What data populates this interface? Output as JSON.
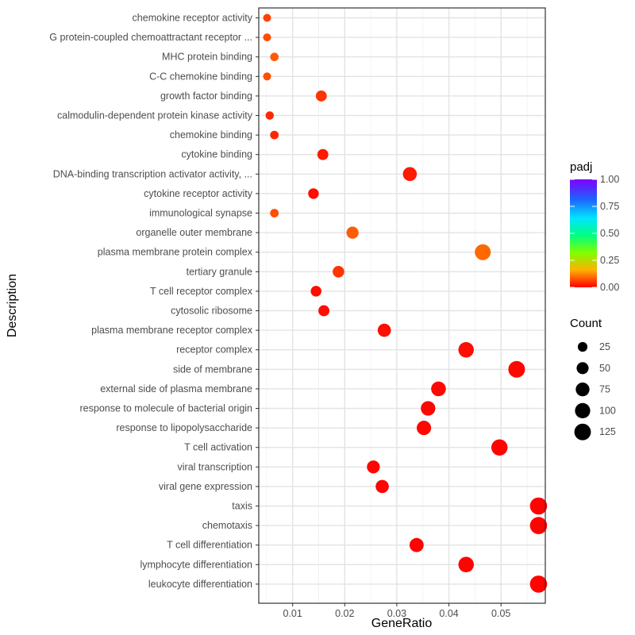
{
  "chart_data": {
    "type": "scatter",
    "title": "",
    "xlabel": "GeneRatio",
    "ylabel": "Description",
    "xlim": [
      0.0035,
      0.0585
    ],
    "xticks": [
      0.01,
      0.02,
      0.03,
      0.04,
      0.05
    ],
    "xtick_labels": [
      "0.01",
      "0.02",
      "0.03",
      "0.04",
      "0.05"
    ],
    "grid": true,
    "categories": [
      "chemokine receptor activity",
      "G protein-coupled chemoattractant receptor ...",
      "MHC protein binding",
      "C-C chemokine binding",
      "growth factor binding",
      "calmodulin-dependent protein kinase activity",
      "chemokine binding",
      "cytokine binding",
      "DNA-binding transcription activator activity, ...",
      "cytokine receptor activity",
      "immunological synapse",
      "organelle outer membrane",
      "plasma membrane protein complex",
      "tertiary granule",
      "T cell receptor complex",
      "cytosolic ribosome",
      "plasma membrane receptor complex",
      "receptor complex",
      "side of membrane",
      "external side of plasma membrane",
      "response to molecule of bacterial origin",
      "response to lipopolysaccharide",
      "T cell activation",
      "viral transcription",
      "viral gene expression",
      "taxis",
      "chemotaxis",
      "T cell differentiation",
      "lymphocyte differentiation",
      "leukocyte differentiation"
    ],
    "points": [
      {
        "gene_ratio": 0.0051,
        "count": 12,
        "padj": 0.05
      },
      {
        "gene_ratio": 0.0051,
        "count": 12,
        "padj": 0.06
      },
      {
        "gene_ratio": 0.0065,
        "count": 15,
        "padj": 0.07
      },
      {
        "gene_ratio": 0.0051,
        "count": 12,
        "padj": 0.06
      },
      {
        "gene_ratio": 0.0155,
        "count": 38,
        "padj": 0.04
      },
      {
        "gene_ratio": 0.0056,
        "count": 14,
        "padj": 0.03
      },
      {
        "gene_ratio": 0.0065,
        "count": 16,
        "padj": 0.03
      },
      {
        "gene_ratio": 0.0158,
        "count": 38,
        "padj": 0.02
      },
      {
        "gene_ratio": 0.0325,
        "count": 78,
        "padj": 0.02
      },
      {
        "gene_ratio": 0.014,
        "count": 34,
        "padj": 0.01
      },
      {
        "gene_ratio": 0.0065,
        "count": 16,
        "padj": 0.06
      },
      {
        "gene_ratio": 0.0215,
        "count": 52,
        "padj": 0.07
      },
      {
        "gene_ratio": 0.0465,
        "count": 112,
        "padj": 0.08
      },
      {
        "gene_ratio": 0.0188,
        "count": 45,
        "padj": 0.04
      },
      {
        "gene_ratio": 0.0145,
        "count": 35,
        "padj": 0.01
      },
      {
        "gene_ratio": 0.016,
        "count": 39,
        "padj": 0.01
      },
      {
        "gene_ratio": 0.0276,
        "count": 67,
        "padj": 0.01
      },
      {
        "gene_ratio": 0.0433,
        "count": 104,
        "padj": 0.01
      },
      {
        "gene_ratio": 0.053,
        "count": 127,
        "padj": 0.005
      },
      {
        "gene_ratio": 0.038,
        "count": 91,
        "padj": 0.005
      },
      {
        "gene_ratio": 0.036,
        "count": 87,
        "padj": 0.005
      },
      {
        "gene_ratio": 0.0352,
        "count": 85,
        "padj": 0.005
      },
      {
        "gene_ratio": 0.0497,
        "count": 119,
        "padj": 0.003
      },
      {
        "gene_ratio": 0.0255,
        "count": 62,
        "padj": 0.003
      },
      {
        "gene_ratio": 0.0272,
        "count": 66,
        "padj": 0.003
      },
      {
        "gene_ratio": 0.0572,
        "count": 137,
        "padj": 0.002
      },
      {
        "gene_ratio": 0.0572,
        "count": 137,
        "padj": 0.002
      },
      {
        "gene_ratio": 0.0338,
        "count": 81,
        "padj": 0.002
      },
      {
        "gene_ratio": 0.0433,
        "count": 104,
        "padj": 0.002
      },
      {
        "gene_ratio": 0.0572,
        "count": 137,
        "padj": 0.002
      }
    ],
    "color_legend": {
      "title": "padj",
      "ticks": [
        1.0,
        0.75,
        0.5,
        0.25,
        0.0
      ],
      "tick_labels": [
        "1.00",
        "0.75",
        "0.50",
        "0.25",
        "0.00"
      ],
      "colors": [
        "#7F00FF",
        "#00BFFF",
        "#00FFCC",
        "#80FF00",
        "#FFD000",
        "#FF6600",
        "#FF0000"
      ]
    },
    "size_legend": {
      "title": "Count",
      "values": [
        25,
        50,
        75,
        100,
        125
      ],
      "labels": [
        "25",
        "50",
        "75",
        "100",
        "125"
      ]
    },
    "legend_placement": "right"
  }
}
